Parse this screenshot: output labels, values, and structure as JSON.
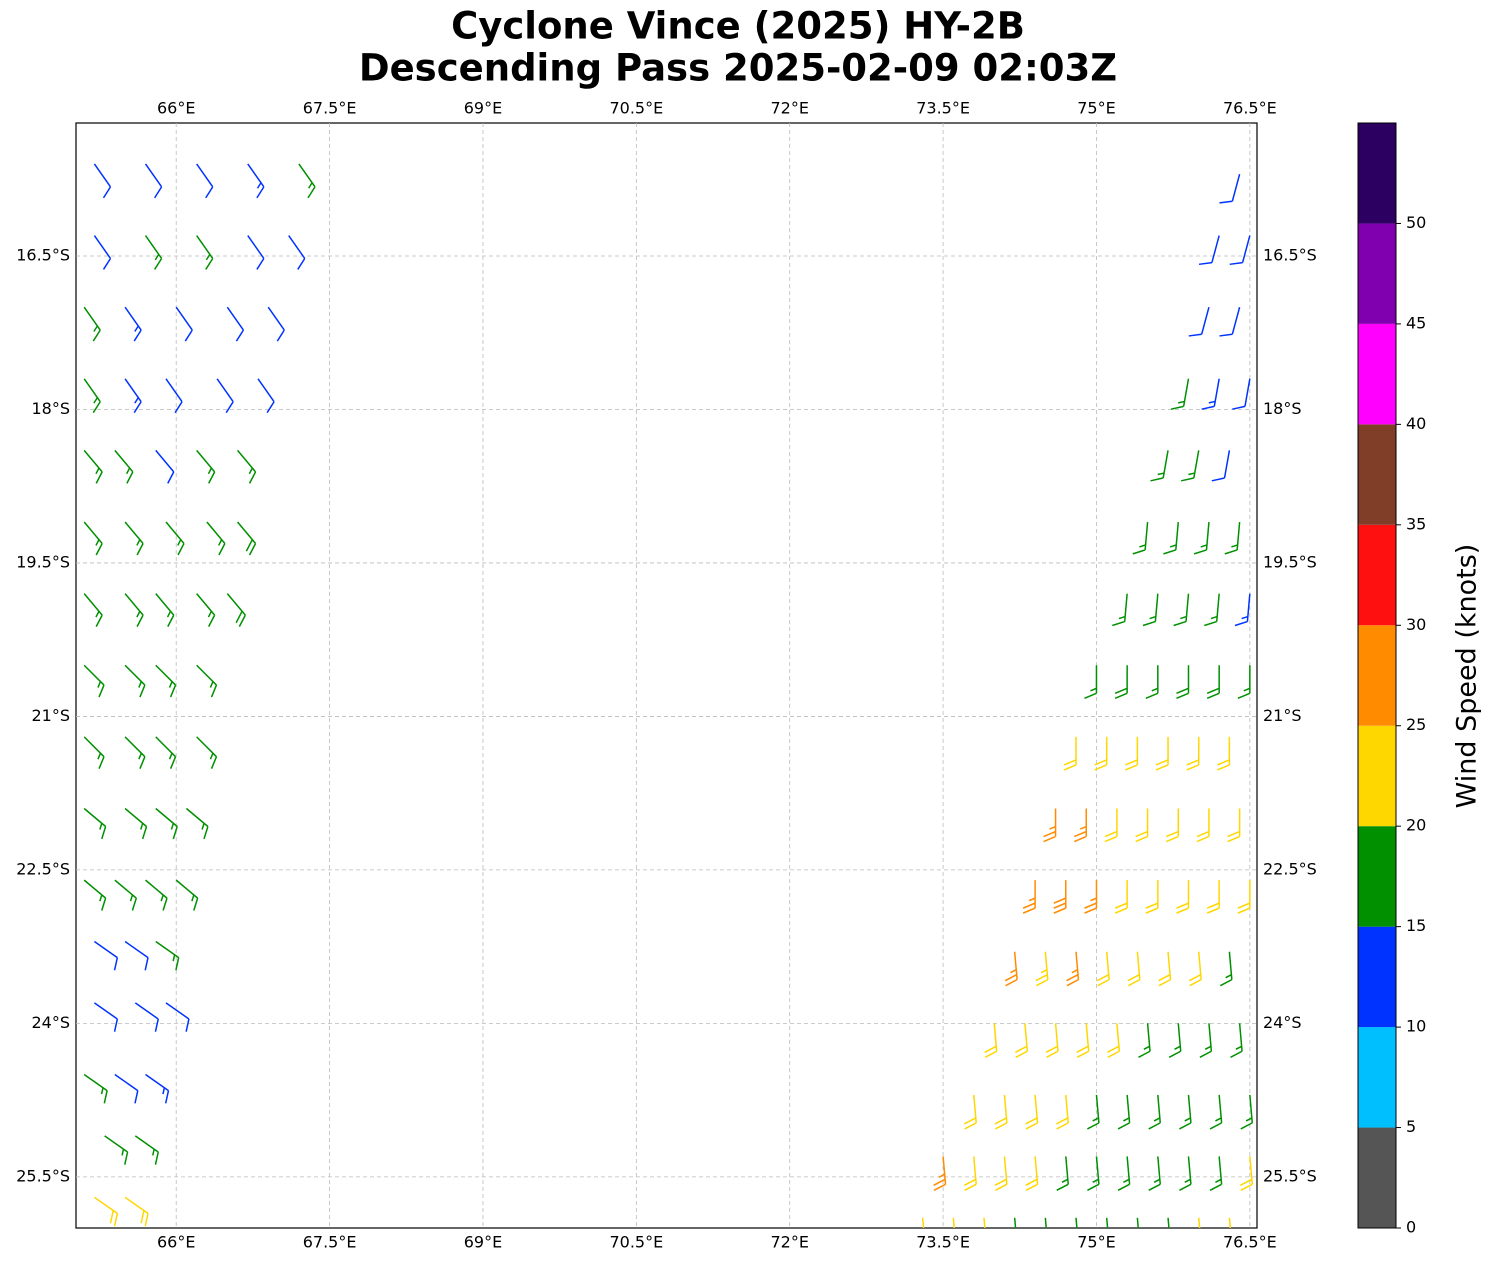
{
  "chart_data": {
    "type": "barbs",
    "title": "Cyclone Vince (2025) HY-2B",
    "subtitle": "Descending Pass 2025-02-09 02:03Z",
    "xlim": [
      65.02,
      76.57
    ],
    "ylim": [
      -26.0,
      -15.2
    ],
    "xticks": [
      {
        "value": 66,
        "label": "66°E"
      },
      {
        "value": 67.5,
        "label": "67.5°E"
      },
      {
        "value": 69,
        "label": "69°E"
      },
      {
        "value": 70.5,
        "label": "70.5°E"
      },
      {
        "value": 72,
        "label": "72°E"
      },
      {
        "value": 73.5,
        "label": "73.5°E"
      },
      {
        "value": 75,
        "label": "75°E"
      },
      {
        "value": 76.5,
        "label": "76.5°E"
      }
    ],
    "yticks": [
      {
        "value": -16.5,
        "label": "16.5°S"
      },
      {
        "value": -18,
        "label": "18°S"
      },
      {
        "value": -19.5,
        "label": "19.5°S"
      },
      {
        "value": -21,
        "label": "21°S"
      },
      {
        "value": -22.5,
        "label": "22.5°S"
      },
      {
        "value": -24,
        "label": "24°S"
      },
      {
        "value": -25.5,
        "label": "25.5°S"
      }
    ],
    "grid": true,
    "barbs": [
      {
        "lat": -15.6,
        "direction": 145,
        "lon": [
          65.2,
          65.7,
          66.2,
          66.7,
          67.2
        ],
        "speed": [
          12,
          12,
          12,
          13,
          17
        ]
      },
      {
        "lat": -16.3,
        "direction": 145,
        "lon": [
          65.2,
          65.7,
          66.2,
          66.7,
          67.1
        ],
        "speed": [
          12,
          17,
          17,
          12,
          12
        ]
      },
      {
        "lat": -17.0,
        "direction": 145,
        "lon": [
          65.1,
          65.5,
          66.0,
          66.5,
          66.9
        ],
        "speed": [
          17,
          13,
          12,
          12,
          12
        ]
      },
      {
        "lat": -17.7,
        "direction": 145,
        "lon": [
          65.1,
          65.5,
          65.9,
          66.4,
          66.8
        ],
        "speed": [
          17,
          13,
          12,
          12,
          12
        ]
      },
      {
        "lat": -18.4,
        "direction": 140,
        "lon": [
          65.1,
          65.4,
          65.8,
          66.2,
          66.6
        ],
        "speed": [
          17,
          16,
          12,
          17,
          17
        ]
      },
      {
        "lat": -19.1,
        "direction": 140,
        "lon": [
          65.1,
          65.5,
          65.9,
          66.3,
          66.6
        ],
        "speed": [
          17,
          17,
          17,
          17,
          18
        ]
      },
      {
        "lat": -19.8,
        "direction": 140,
        "lon": [
          65.1,
          65.5,
          65.8,
          66.2,
          66.5
        ],
        "speed": [
          17,
          17,
          17,
          17,
          18
        ]
      },
      {
        "lat": -20.5,
        "direction": 135,
        "lon": [
          65.1,
          65.5,
          65.8,
          66.2
        ],
        "speed": [
          17,
          17,
          17,
          17
        ]
      },
      {
        "lat": -21.2,
        "direction": 135,
        "lon": [
          65.1,
          65.5,
          65.8,
          66.2
        ],
        "speed": [
          17,
          17,
          17,
          17
        ]
      },
      {
        "lat": -21.9,
        "direction": 130,
        "lon": [
          65.1,
          65.5,
          65.8,
          66.1
        ],
        "speed": [
          17,
          17,
          17,
          17
        ]
      },
      {
        "lat": -22.6,
        "direction": 130,
        "lon": [
          65.1,
          65.4,
          65.7,
          66.0
        ],
        "speed": [
          17,
          17,
          17,
          17
        ]
      },
      {
        "lat": -23.2,
        "direction": 125,
        "lon": [
          65.2,
          65.5,
          65.8
        ],
        "speed": [
          12,
          12,
          17
        ]
      },
      {
        "lat": -23.8,
        "direction": 125,
        "lon": [
          65.2,
          65.6,
          65.9
        ],
        "speed": [
          12,
          12,
          12
        ]
      },
      {
        "lat": -24.5,
        "direction": 125,
        "lon": [
          65.1,
          65.4,
          65.7
        ],
        "speed": [
          17,
          12,
          13
        ]
      },
      {
        "lat": -25.1,
        "direction": 125,
        "lon": [
          65.3,
          65.6
        ],
        "speed": [
          17,
          17
        ]
      },
      {
        "lat": -25.7,
        "direction": 125,
        "lon": [
          65.2,
          65.5
        ],
        "speed": [
          22,
          22
        ]
      },
      {
        "lat": -15.7,
        "direction": 195,
        "lon": [
          76.4
        ],
        "speed": [
          12
        ]
      },
      {
        "lat": -16.3,
        "direction": 195,
        "lon": [
          76.2,
          76.5
        ],
        "speed": [
          12,
          12
        ]
      },
      {
        "lat": -17.0,
        "direction": 195,
        "lon": [
          76.1,
          76.4
        ],
        "speed": [
          12,
          12
        ]
      },
      {
        "lat": -17.7,
        "direction": 190,
        "lon": [
          75.9,
          76.2,
          76.5
        ],
        "speed": [
          17,
          13,
          12
        ]
      },
      {
        "lat": -18.4,
        "direction": 190,
        "lon": [
          75.7,
          76.0,
          76.3
        ],
        "speed": [
          17,
          17,
          12
        ]
      },
      {
        "lat": -19.1,
        "direction": 185,
        "lon": [
          75.5,
          75.8,
          76.1,
          76.4
        ],
        "speed": [
          17,
          17,
          17,
          17
        ]
      },
      {
        "lat": -19.8,
        "direction": 185,
        "lon": [
          75.3,
          75.6,
          75.9,
          76.2,
          76.5
        ],
        "speed": [
          17,
          17,
          17,
          17,
          13
        ]
      },
      {
        "lat": -20.5,
        "direction": 180,
        "lon": [
          75.0,
          75.3,
          75.6,
          75.9,
          76.2,
          76.5
        ],
        "speed": [
          17,
          18,
          17,
          18,
          18,
          17
        ]
      },
      {
        "lat": -21.2,
        "direction": 180,
        "lon": [
          74.8,
          75.1,
          75.4,
          75.7,
          76.0,
          76.3
        ],
        "speed": [
          22,
          22,
          22,
          22,
          22,
          22
        ]
      },
      {
        "lat": -21.9,
        "direction": 180,
        "lon": [
          74.6,
          74.9,
          75.2,
          75.5,
          75.8,
          76.1,
          76.4
        ],
        "speed": [
          27,
          27,
          22,
          22,
          22,
          22,
          22
        ]
      },
      {
        "lat": -22.6,
        "direction": 180,
        "lon": [
          74.4,
          74.7,
          75.0,
          75.3,
          75.6,
          75.9,
          76.2,
          76.5
        ],
        "speed": [
          27,
          28,
          27,
          22,
          22,
          22,
          22,
          22
        ]
      },
      {
        "lat": -23.3,
        "direction": 175,
        "lon": [
          74.2,
          74.5,
          74.8,
          75.1,
          75.4,
          75.7,
          76.0,
          76.3
        ],
        "speed": [
          27,
          23,
          27,
          22,
          22,
          22,
          22,
          17
        ]
      },
      {
        "lat": -24.0,
        "direction": 175,
        "lon": [
          74.0,
          74.3,
          74.6,
          74.9,
          75.2,
          75.5,
          75.8,
          76.1,
          76.4
        ],
        "speed": [
          22,
          22,
          22,
          22,
          22,
          17,
          17,
          17,
          17
        ]
      },
      {
        "lat": -24.7,
        "direction": 175,
        "lon": [
          73.8,
          74.1,
          74.4,
          74.7,
          75.0,
          75.3,
          75.6,
          75.9,
          76.2,
          76.5
        ],
        "speed": [
          22,
          22,
          22,
          22,
          17,
          17,
          17,
          17,
          17,
          17
        ]
      },
      {
        "lat": -25.3,
        "direction": 175,
        "lon": [
          73.5,
          73.8,
          74.1,
          74.4,
          74.7,
          75.0,
          75.3,
          75.6,
          75.9,
          76.2,
          76.5
        ],
        "speed": [
          27,
          22,
          22,
          22,
          17,
          17,
          17,
          17,
          17,
          17,
          22
        ]
      },
      {
        "lat": -25.9,
        "direction": 175,
        "lon": [
          73.3,
          73.6,
          73.9,
          74.2,
          74.5,
          74.8,
          75.1,
          75.4,
          75.7,
          76.0,
          76.3
        ],
        "speed": [
          22,
          22,
          22,
          17,
          17,
          17,
          17,
          17,
          17,
          22,
          22
        ]
      }
    ],
    "colorbar": {
      "label": "Wind Speed (knots)",
      "levels": [
        0,
        5,
        10,
        15,
        20,
        25,
        30,
        35,
        40,
        45,
        50,
        55
      ],
      "colors": [
        "#555555",
        "#00bfff",
        "#0033ff",
        "#009000",
        "#ffd700",
        "#ff8c00",
        "#ff1010",
        "#803d28",
        "#ff00ff",
        "#8000b0",
        "#2b0060"
      ],
      "ylim": [
        0,
        55
      ],
      "yticks": [
        0,
        5,
        10,
        15,
        20,
        25,
        30,
        35,
        40,
        45,
        50
      ]
    }
  }
}
